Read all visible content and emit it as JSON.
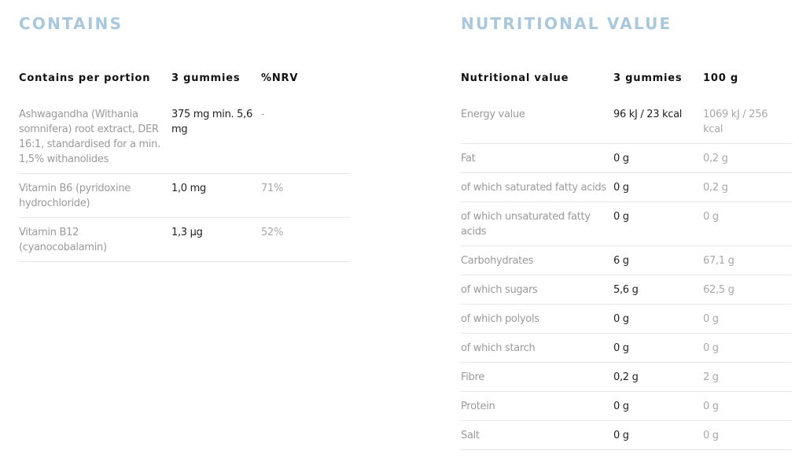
{
  "contains": {
    "title": "CONTAINS",
    "headers": [
      "Contains per portion",
      "3 gummies",
      "%NRV"
    ],
    "rows": [
      {
        "name": "Ashwagandha (Withania somnifera) root extract, DER 16:1, standardised for a min. 1,5% withanolides",
        "portion": "375 mg min. 5,6 mg",
        "nrv": "-"
      },
      {
        "name": "Vitamin B6 (pyridoxine hydrochloride)",
        "portion": "1,0 mg",
        "nrv": "71%"
      },
      {
        "name": "Vitamin B12 (cyanocobalamin)",
        "portion": "1,3 µg",
        "nrv": "52%"
      }
    ]
  },
  "nutrition": {
    "title": "NUTRITIONAL VALUE",
    "headers": [
      "Nutritional value",
      "3 gummies",
      "100 g"
    ],
    "rows": [
      {
        "name": "Energy value",
        "portion": "96 kJ / 23 kcal",
        "per100": "1069 kJ / 256 kcal"
      },
      {
        "name": "Fat",
        "portion": "0 g",
        "per100": "0,2 g"
      },
      {
        "name": "of which saturated fatty acids",
        "portion": "0 g",
        "per100": "0,2 g"
      },
      {
        "name": "of which unsaturated fatty acids",
        "portion": "0 g",
        "per100": "0 g"
      },
      {
        "name": "Carbohydrates",
        "portion": "6 g",
        "per100": "67,1 g"
      },
      {
        "name": "of which sugars",
        "portion": "5,6 g",
        "per100": "62,5 g"
      },
      {
        "name": "of which polyols",
        "portion": "0 g",
        "per100": "0 g"
      },
      {
        "name": "of which starch",
        "portion": "0 g",
        "per100": "0 g"
      },
      {
        "name": "Fibre",
        "portion": "0,2 g",
        "per100": "2 g"
      },
      {
        "name": "Protein",
        "portion": "0 g",
        "per100": "0 g"
      },
      {
        "name": "Salt",
        "portion": "0 g",
        "per100": "0 g"
      }
    ]
  },
  "colors": {
    "title": "#a9c8dc",
    "label": "#9a9a9a",
    "value": "#222222"
  }
}
